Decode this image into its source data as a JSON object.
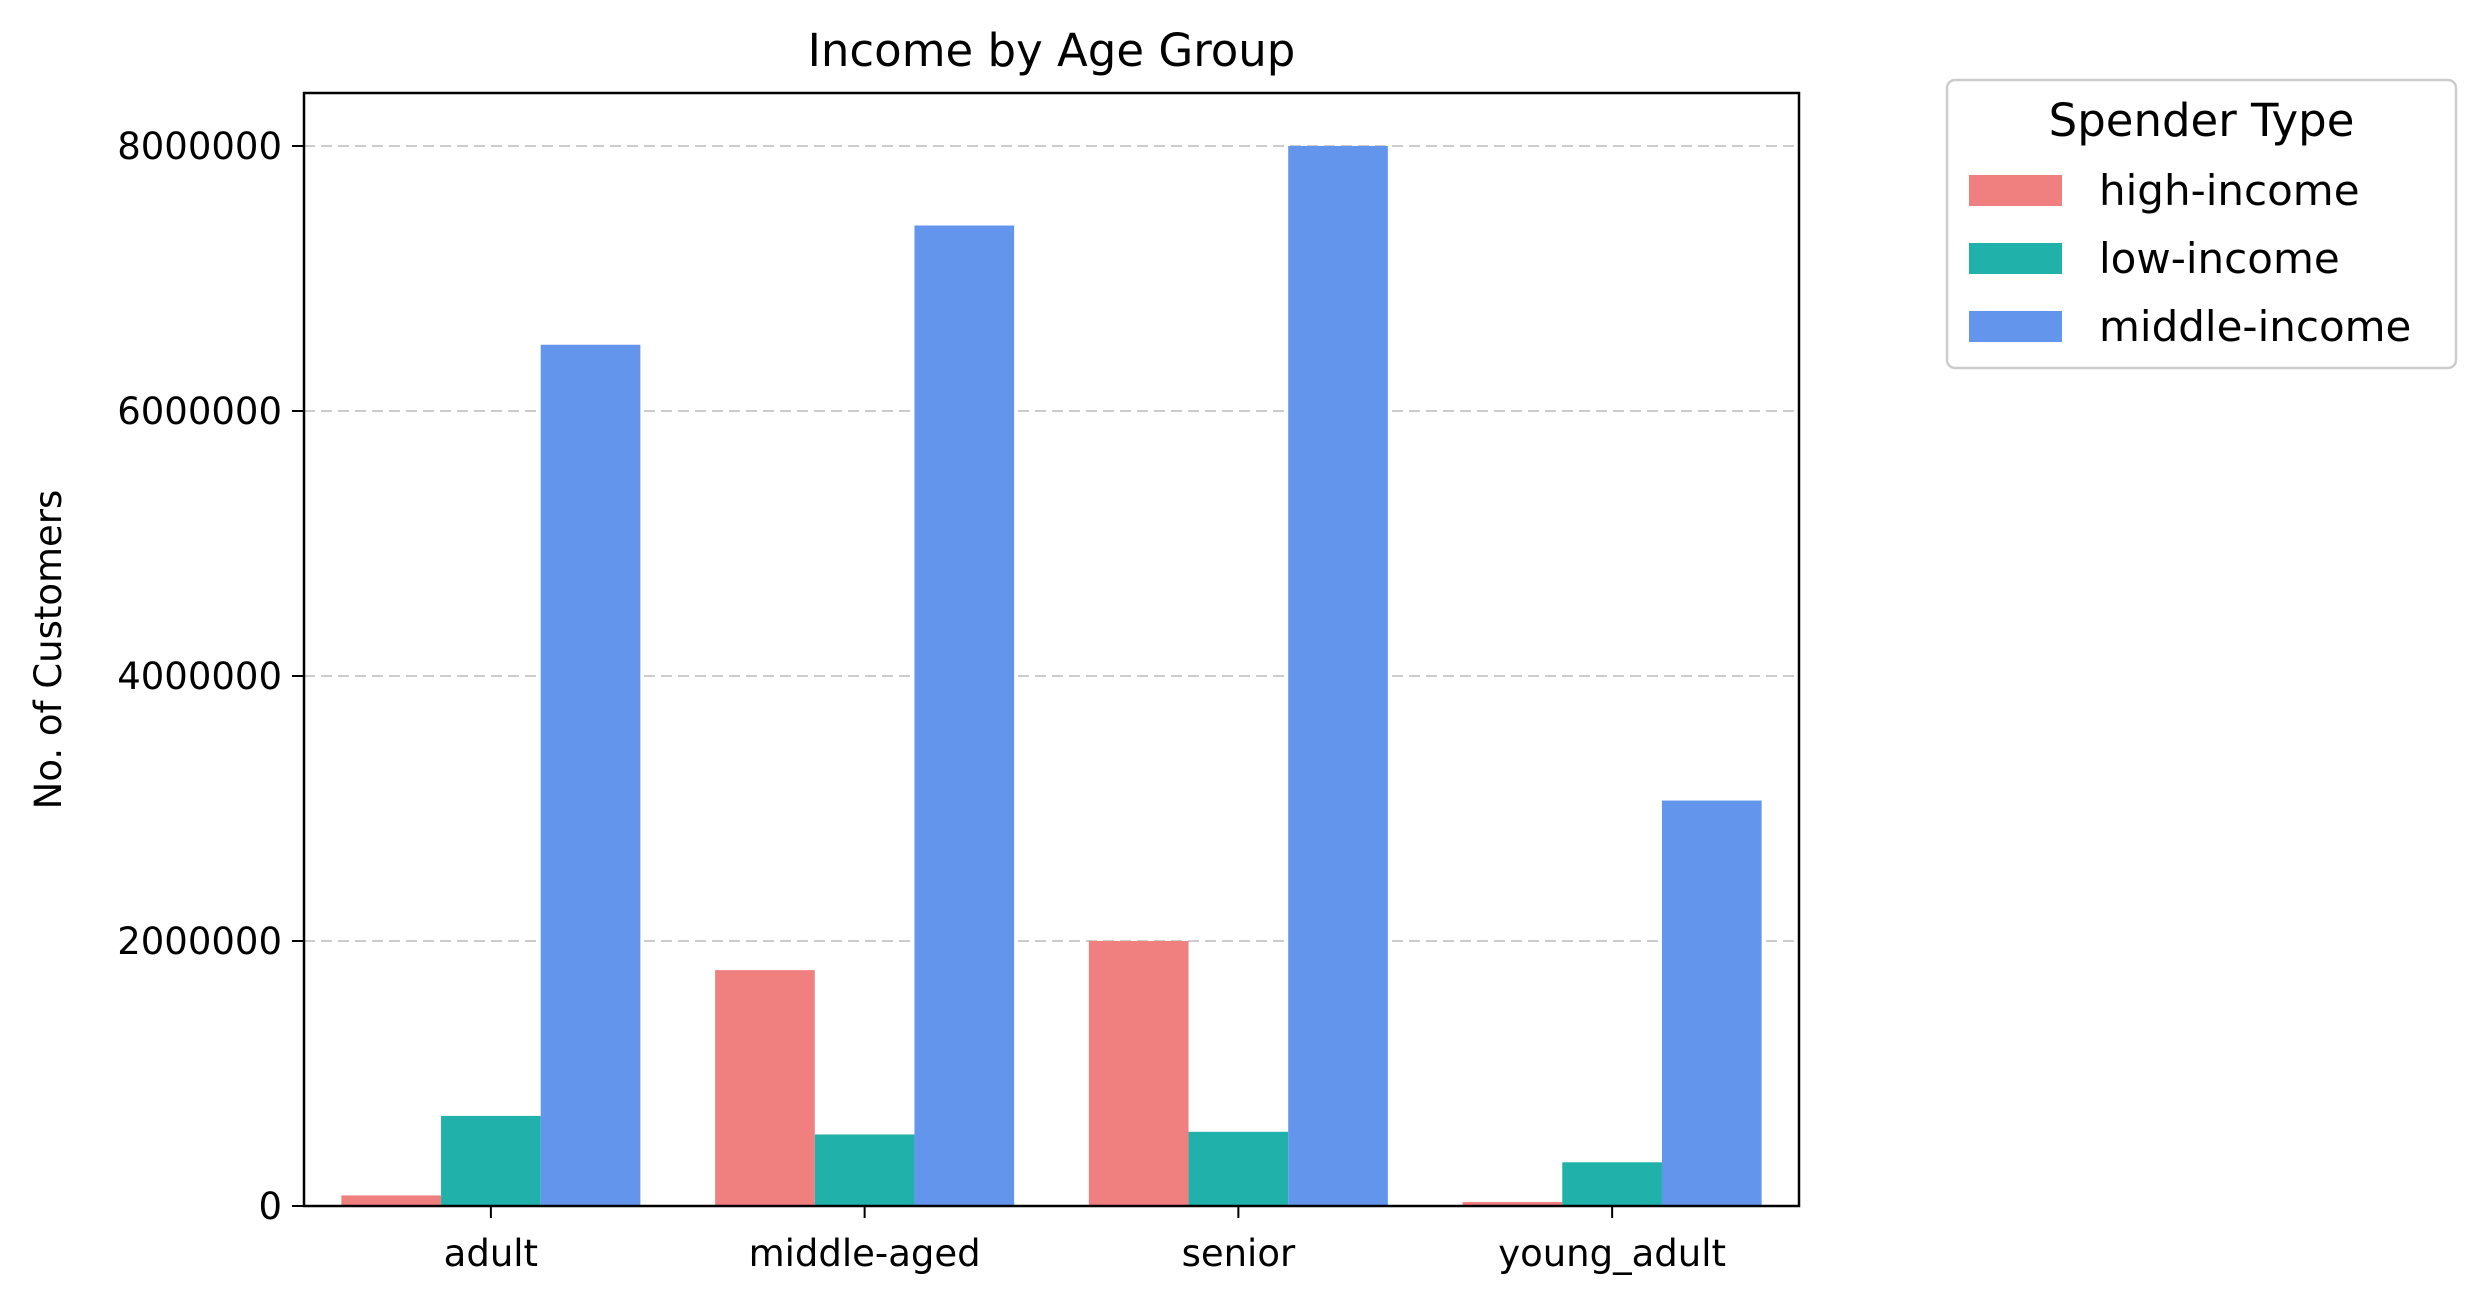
{
  "chart_data": {
    "type": "bar",
    "title": "Income by Age Group",
    "xlabel": "",
    "ylabel": "No. of Customers",
    "categories": [
      "adult",
      "middle-aged",
      "senior",
      "young_adult"
    ],
    "series": [
      {
        "name": "high-income",
        "color": "#F08080",
        "values": [
          80000,
          1780000,
          2000000,
          30000
        ]
      },
      {
        "name": "low-income",
        "color": "#20B2AA",
        "values": [
          680000,
          540000,
          560000,
          330000
        ]
      },
      {
        "name": "middle-income",
        "color": "#6495ED",
        "values": [
          6500000,
          7400000,
          8000000,
          3060000
        ]
      }
    ],
    "ylim": [
      0,
      8400000
    ],
    "yticks": [
      0,
      2000000,
      4000000,
      6000000,
      8000000
    ],
    "ytick_labels": [
      "0",
      "2000000",
      "4000000",
      "6000000",
      "8000000"
    ],
    "grid": "y-dashed",
    "legend": {
      "title": "Spender Type",
      "placement": "outside-top-right"
    }
  }
}
